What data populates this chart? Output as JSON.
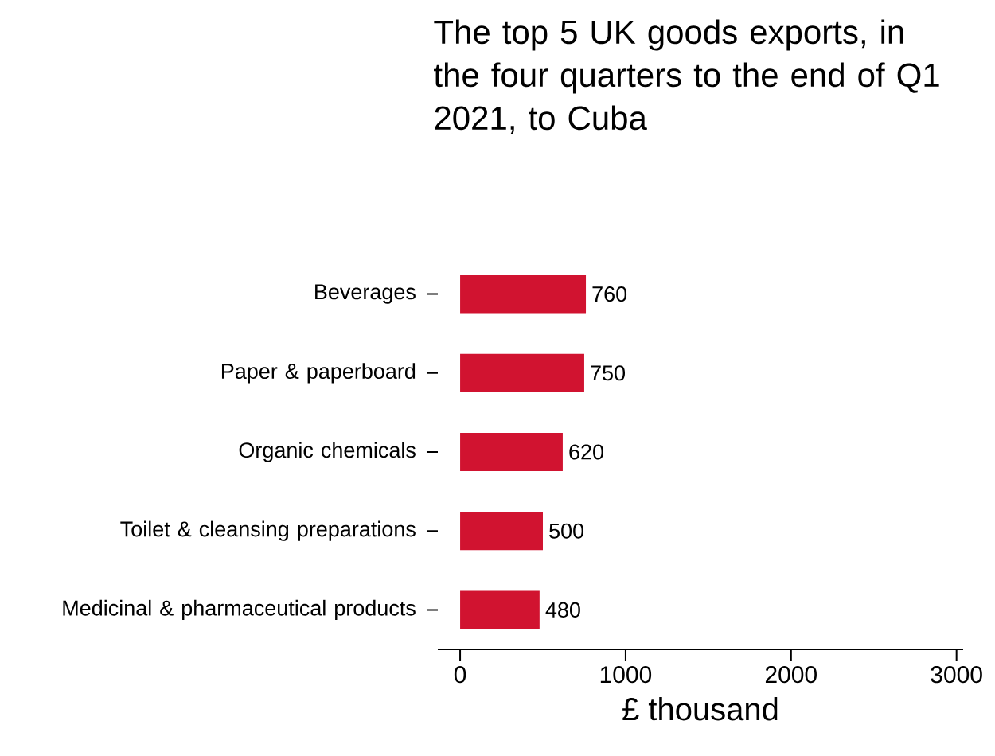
{
  "chart_data": {
    "type": "bar",
    "orientation": "horizontal",
    "title": "The top 5 UK goods exports, in the four quarters to the end of Q1 2021, to Cuba",
    "xlabel": "£ thousand",
    "categories": [
      "Beverages",
      "Paper & paperboard",
      "Organic chemicals",
      "Toilet & cleansing preparations",
      "Medicinal & pharmaceutical products"
    ],
    "values": [
      760,
      750,
      620,
      500,
      480
    ],
    "color": "#d11330",
    "data_labels": true,
    "xlim": [
      -135,
      3040
    ],
    "xticks": [
      0,
      1000,
      2000,
      3000
    ]
  }
}
